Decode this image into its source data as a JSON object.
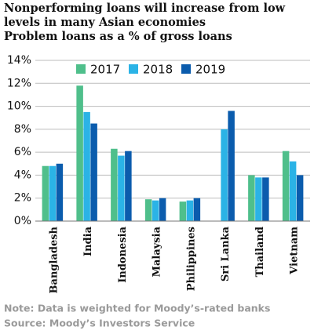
{
  "chart_data": {
    "type": "bar",
    "title": "Nonperforming loans will increase from low levels in many Asian economies",
    "subtitle": "Problem loans as a % of gross loans",
    "categories": [
      "Bangladesh",
      "India",
      "Indonesia",
      "Malaysia",
      "Philippines",
      "Sri Lanka",
      "Thailand",
      "Vietnam"
    ],
    "series": [
      {
        "name": "2017",
        "color": "#4fbf8b",
        "values": [
          4.8,
          11.8,
          6.3,
          1.9,
          1.7,
          null,
          4.0,
          6.1
        ]
      },
      {
        "name": "2018",
        "color": "#2bb3e6",
        "values": [
          4.8,
          9.5,
          5.7,
          1.8,
          1.8,
          8.0,
          3.8,
          5.2
        ]
      },
      {
        "name": "2019",
        "color": "#0b5cad",
        "values": [
          5.0,
          8.5,
          6.1,
          2.0,
          2.0,
          9.6,
          3.8,
          4.0
        ]
      }
    ],
    "ylim": [
      0,
      14
    ],
    "yticks": [
      {
        "value": 0,
        "label": "0%"
      },
      {
        "value": 2,
        "label": "2%"
      },
      {
        "value": 4,
        "label": "4%"
      },
      {
        "value": 6,
        "label": "6%"
      },
      {
        "value": 8,
        "label": "8%"
      },
      {
        "value": 10,
        "label": "10%"
      },
      {
        "value": 12,
        "label": "12%"
      },
      {
        "value": 14,
        "label": "14%"
      }
    ],
    "grid": true,
    "legend": "top",
    "notes": [
      "Note: Data is weighted for Moody’s-rated banks",
      "Source: Moody’s Investors Service"
    ]
  }
}
